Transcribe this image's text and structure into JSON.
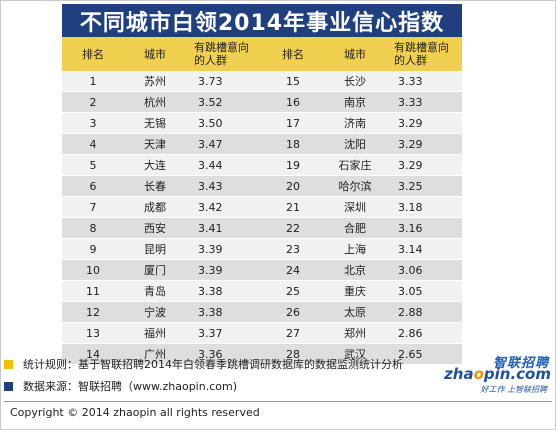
{
  "title": "不同城市白领2014年事业信心指数",
  "headers": [
    "排名",
    "城市",
    "有跳槽意向的人群",
    "排名",
    "城市",
    "有跳槽意向的人群"
  ],
  "rows": [
    [
      "1",
      "苏州",
      "3.73",
      "15",
      "长沙",
      "3.33"
    ],
    [
      "2",
      "杭州",
      "3.52",
      "16",
      "南京",
      "3.33"
    ],
    [
      "3",
      "无锡",
      "3.50",
      "17",
      "济南",
      "3.29"
    ],
    [
      "4",
      "天津",
      "3.47",
      "18",
      "沈阳",
      "3.29"
    ],
    [
      "5",
      "大连",
      "3.44",
      "19",
      "石家庄",
      "3.29"
    ],
    [
      "6",
      "长春",
      "3.43",
      "20",
      "哈尔滨",
      "3.25"
    ],
    [
      "7",
      "成都",
      "3.42",
      "21",
      "深圳",
      "3.18"
    ],
    [
      "8",
      "西安",
      "3.41",
      "22",
      "合肥",
      "3.16"
    ],
    [
      "9",
      "昆明",
      "3.39",
      "23",
      "上海",
      "3.14"
    ],
    [
      "10",
      "厦门",
      "3.39",
      "24",
      "北京",
      "3.06"
    ],
    [
      "11",
      "青岛",
      "3.38",
      "25",
      "重庆",
      "3.05"
    ],
    [
      "12",
      "宁波",
      "3.38",
      "26",
      "太原",
      "2.88"
    ],
    [
      "13",
      "福州",
      "3.37",
      "27",
      "郑州",
      "2.86"
    ],
    [
      "14",
      "广州",
      "3.36",
      "28",
      "武汉",
      "2.65"
    ]
  ],
  "notes": {
    "rule": "统计规则：基于智联招聘2014年白领春季跳槽调研数据库的数据监测统计分析",
    "source": "数据来源：智联招聘（www.zhaopin.com)"
  },
  "logo": {
    "cn": "智联招聘",
    "en_pre": "zha",
    "en_hl": "o",
    "en_post": "pin.com",
    "slogan": "好工作 上智联招聘"
  },
  "copyright": "Copyright  ©  2014 zhaopin all rights reserved",
  "colors": {
    "title_bg": "#1f3f7f",
    "header_bg": "#f2d04f",
    "row_light": "#f1f1f1",
    "row_dark": "#dedede",
    "legend_yellow": "#f2c200",
    "legend_blue": "#1f3f7f"
  }
}
